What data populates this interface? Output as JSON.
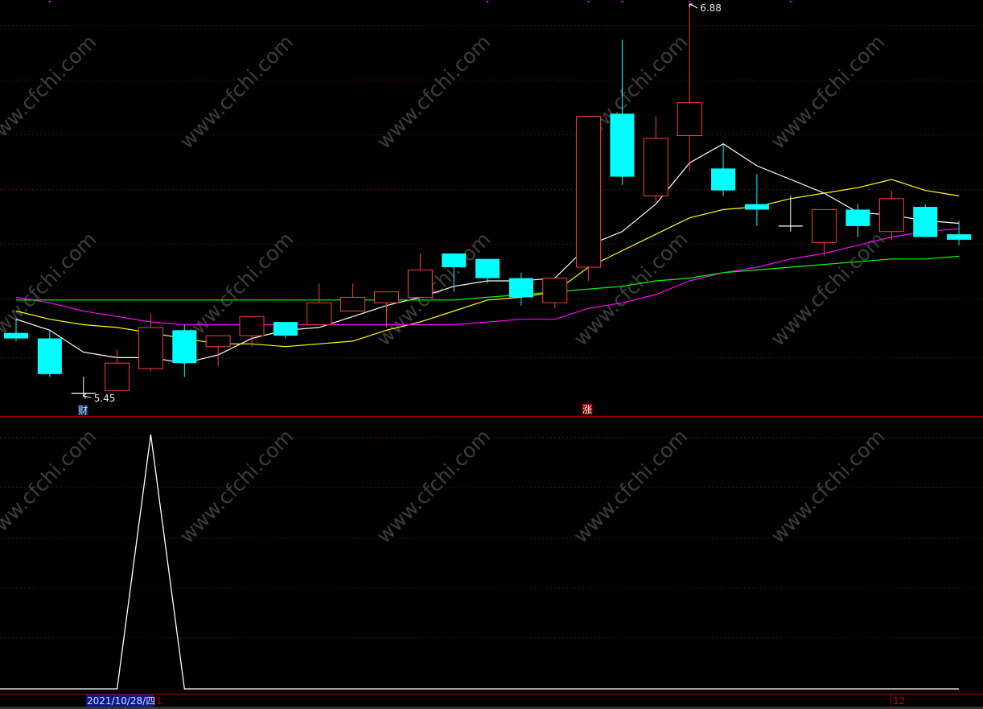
{
  "chart_data": [
    {
      "type": "candlestick",
      "panel": "price",
      "high_label": "6.88",
      "low_label": "5.45",
      "marker_cai": "财",
      "marker_zhang": "涨",
      "colors": {
        "up": "#ff3b3b",
        "down": "#00ffff",
        "flat": "#ffffff",
        "ma5": "#ffffff",
        "ma10": "#ffff00",
        "ma20": "#ff00ff",
        "ma60": "#00ff00",
        "grid": "#8b0000",
        "divider": "#a00000"
      },
      "candles": [
        {
          "o": 5.68,
          "h": 5.73,
          "l": 5.65,
          "c": 5.66
        },
        {
          "o": 5.66,
          "h": 5.69,
          "l": 5.52,
          "c": 5.53
        },
        {
          "o": 5.46,
          "h": 5.52,
          "l": 5.45,
          "c": 5.46
        },
        {
          "o": 5.47,
          "h": 5.62,
          "l": 5.47,
          "c": 5.57
        },
        {
          "o": 5.55,
          "h": 5.75,
          "l": 5.54,
          "c": 5.7
        },
        {
          "o": 5.69,
          "h": 5.71,
          "l": 5.52,
          "c": 5.57
        },
        {
          "o": 5.63,
          "h": 5.67,
          "l": 5.56,
          "c": 5.67
        },
        {
          "o": 5.67,
          "h": 5.74,
          "l": 5.63,
          "c": 5.74
        },
        {
          "o": 5.72,
          "h": 5.72,
          "l": 5.66,
          "c": 5.67
        },
        {
          "o": 5.71,
          "h": 5.86,
          "l": 5.71,
          "c": 5.79
        },
        {
          "o": 5.76,
          "h": 5.86,
          "l": 5.76,
          "c": 5.81
        },
        {
          "o": 5.79,
          "h": 5.83,
          "l": 5.7,
          "c": 5.83
        },
        {
          "o": 5.81,
          "h": 5.97,
          "l": 5.81,
          "c": 5.91
        },
        {
          "o": 5.97,
          "h": 5.97,
          "l": 5.83,
          "c": 5.92
        },
        {
          "o": 5.95,
          "h": 5.95,
          "l": 5.86,
          "c": 5.88
        },
        {
          "o": 5.88,
          "h": 5.9,
          "l": 5.78,
          "c": 5.81
        },
        {
          "o": 5.79,
          "h": 5.88,
          "l": 5.77,
          "c": 5.88
        },
        {
          "o": 5.92,
          "h": 6.47,
          "l": 5.87,
          "c": 6.47
        },
        {
          "o": 6.48,
          "h": 6.75,
          "l": 6.22,
          "c": 6.25
        },
        {
          "o": 6.18,
          "h": 6.47,
          "l": 6.15,
          "c": 6.39
        },
        {
          "o": 6.4,
          "h": 6.88,
          "l": 6.27,
          "c": 6.52
        },
        {
          "o": 6.28,
          "h": 6.37,
          "l": 6.18,
          "c": 6.2
        },
        {
          "o": 6.15,
          "h": 6.26,
          "l": 6.07,
          "c": 6.13
        },
        {
          "o": 6.07,
          "h": 6.18,
          "l": 6.05,
          "c": 6.07
        },
        {
          "o": 6.01,
          "h": 6.13,
          "l": 5.96,
          "c": 6.13
        },
        {
          "o": 6.13,
          "h": 6.15,
          "l": 6.03,
          "c": 6.07
        },
        {
          "o": 6.05,
          "h": 6.2,
          "l": 6.02,
          "c": 6.17
        },
        {
          "o": 6.14,
          "h": 6.15,
          "l": 6.03,
          "c": 6.03
        },
        {
          "o": 6.04,
          "h": 6.09,
          "l": 6.0,
          "c": 6.02
        }
      ],
      "moving_averages": [
        {
          "key": "ma5",
          "values": [
            5.73,
            5.69,
            5.61,
            5.59,
            5.59,
            5.57,
            5.6,
            5.66,
            5.69,
            5.7,
            5.74,
            5.78,
            5.81,
            5.85,
            5.87,
            5.87,
            5.88,
            6.0,
            6.05,
            6.15,
            6.3,
            6.37,
            6.29,
            6.24,
            6.19,
            6.12,
            6.11,
            6.09,
            6.08
          ]
        },
        {
          "key": "ma10",
          "values": [
            5.76,
            5.73,
            5.71,
            5.7,
            5.68,
            5.66,
            5.64,
            5.64,
            5.63,
            5.64,
            5.65,
            5.69,
            5.72,
            5.76,
            5.8,
            5.81,
            5.83,
            5.92,
            5.98,
            6.04,
            6.1,
            6.13,
            6.14,
            6.17,
            6.19,
            6.21,
            6.24,
            6.2,
            6.18
          ]
        },
        {
          "key": "ma20",
          "values": [
            5.81,
            5.79,
            5.76,
            5.74,
            5.72,
            5.71,
            5.71,
            5.71,
            5.71,
            5.71,
            5.71,
            5.71,
            5.71,
            5.71,
            5.72,
            5.73,
            5.73,
            5.77,
            5.79,
            5.82,
            5.87,
            5.9,
            5.92,
            5.95,
            5.97,
            6.0,
            6.03,
            6.05,
            6.06
          ]
        },
        {
          "key": "ma60",
          "values": [
            5.8,
            5.8,
            5.8,
            5.8,
            5.8,
            5.8,
            5.8,
            5.8,
            5.8,
            5.8,
            5.8,
            5.8,
            5.8,
            5.8,
            5.81,
            5.82,
            5.83,
            5.84,
            5.85,
            5.87,
            5.88,
            5.9,
            5.91,
            5.92,
            5.93,
            5.94,
            5.95,
            5.95,
            5.96
          ]
        }
      ],
      "top_markers_at": [
        1,
        14,
        17,
        18,
        20,
        23
      ],
      "cai_at": 2,
      "zhang_at": 17
    },
    {
      "type": "line",
      "panel": "indicator",
      "color": "#ffffff",
      "values": [
        0,
        0,
        0,
        0,
        1,
        0,
        0,
        0,
        0,
        0,
        0,
        0,
        0,
        0,
        0,
        0,
        0,
        0,
        0,
        0,
        0,
        0,
        0,
        0,
        0,
        0,
        0,
        0,
        0
      ]
    }
  ],
  "axis": {
    "cursor_date": "2021/10/28/四",
    "month_label_1": "1",
    "month_label_12": "12"
  },
  "watermark": "www.cfchi.com"
}
